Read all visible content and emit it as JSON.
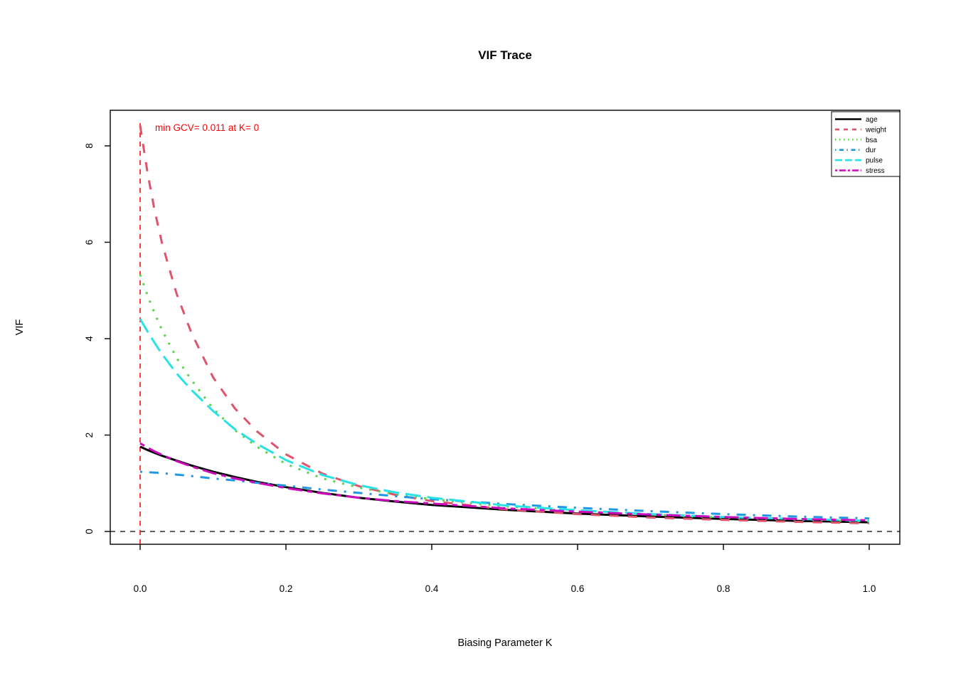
{
  "chart_data": {
    "type": "line",
    "title": "VIF Trace",
    "xlabel": "Biasing Parameter K",
    "ylabel": "VIF",
    "xlim": [
      -0.04,
      1.04
    ],
    "ylim": [
      -0.3,
      8.75
    ],
    "grid": false,
    "x_tick_values": [
      0.0,
      0.2,
      0.4,
      0.6,
      0.8,
      1.0
    ],
    "x_tick_labels": [
      "0.0",
      "0.2",
      "0.4",
      "0.6",
      "0.8",
      "1.0"
    ],
    "y_tick_values": [
      0,
      2,
      4,
      6,
      8
    ],
    "y_tick_labels": [
      "0",
      "2",
      "4",
      "6",
      "8"
    ],
    "annotation": {
      "text": "min GCV= 0.011 at K= 0",
      "color": "#ff0000"
    },
    "reference_lines": {
      "vline": {
        "x": 0,
        "color": "#ff0000",
        "style": "dashed",
        "meaning": "min GCV location"
      },
      "hline": {
        "y": 0,
        "color": "#000000",
        "style": "dashed"
      }
    },
    "x": [
      0,
      0.01,
      0.02,
      0.03,
      0.05,
      0.07,
      0.1,
      0.13,
      0.16,
      0.2,
      0.25,
      0.3,
      0.35,
      0.4,
      0.5,
      0.6,
      0.7,
      0.8,
      0.9,
      1.0
    ],
    "series": [
      {
        "name": "age",
        "color": "#000000",
        "linetype": "solid",
        "values": [
          1.76,
          1.69,
          1.63,
          1.57,
          1.47,
          1.37,
          1.24,
          1.13,
          1.03,
          0.92,
          0.8,
          0.7,
          0.62,
          0.55,
          0.45,
          0.37,
          0.31,
          0.26,
          0.22,
          0.19
        ]
      },
      {
        "name": "weight",
        "color": "#DF536B",
        "linetype": "dashed",
        "values": [
          8.42,
          7.45,
          6.65,
          5.98,
          4.93,
          4.13,
          3.2,
          2.55,
          2.08,
          1.6,
          1.2,
          0.94,
          0.76,
          0.63,
          0.46,
          0.36,
          0.29,
          0.24,
          0.2,
          0.17
        ]
      },
      {
        "name": "bsa",
        "color": "#61D04F",
        "linetype": "dotted",
        "values": [
          5.33,
          4.9,
          4.52,
          4.18,
          3.6,
          3.15,
          2.55,
          2.1,
          1.76,
          1.4,
          1.1,
          0.91,
          0.77,
          0.67,
          0.52,
          0.42,
          0.35,
          0.29,
          0.25,
          0.21
        ]
      },
      {
        "name": "dur",
        "color": "#2297E6",
        "linetype": "dotdash",
        "values": [
          1.24,
          1.23,
          1.22,
          1.21,
          1.18,
          1.15,
          1.1,
          1.06,
          1.01,
          0.95,
          0.87,
          0.8,
          0.73,
          0.67,
          0.57,
          0.49,
          0.42,
          0.36,
          0.31,
          0.27
        ]
      },
      {
        "name": "pulse",
        "color": "#28E2E5",
        "linetype": "longdash",
        "values": [
          4.41,
          4.15,
          3.91,
          3.68,
          3.28,
          2.94,
          2.5,
          2.12,
          1.82,
          1.48,
          1.17,
          0.96,
          0.81,
          0.7,
          0.54,
          0.44,
          0.36,
          0.3,
          0.26,
          0.22
        ]
      },
      {
        "name": "stress",
        "color": "#CD0BBC",
        "linetype": "twodash",
        "values": [
          1.83,
          1.74,
          1.66,
          1.59,
          1.46,
          1.35,
          1.21,
          1.1,
          1.01,
          0.9,
          0.79,
          0.7,
          0.63,
          0.58,
          0.48,
          0.41,
          0.35,
          0.3,
          0.26,
          0.23
        ]
      }
    ],
    "legend": {
      "position": "topright",
      "entries": [
        "age",
        "weight",
        "bsa",
        "dur",
        "pulse",
        "stress"
      ]
    }
  }
}
